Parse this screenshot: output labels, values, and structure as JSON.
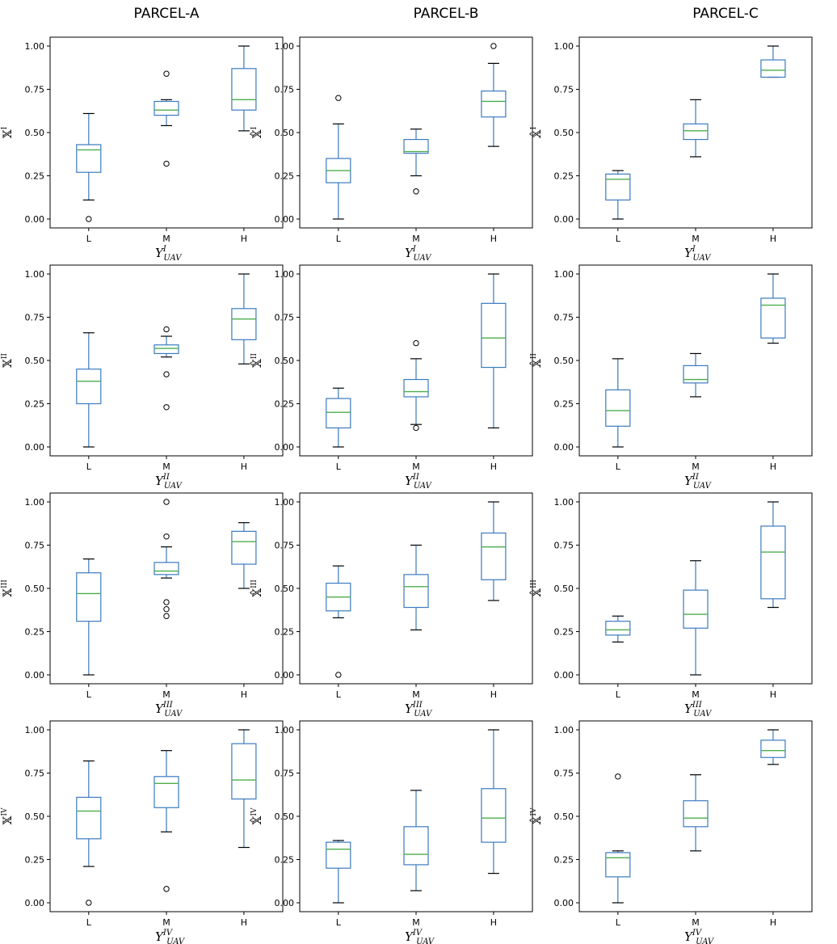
{
  "columns": [
    "PARCEL-A",
    "PARCEL-B",
    "PARCEL-C"
  ],
  "chart_data": [
    {
      "type": "box",
      "parcel": "PARCEL-A",
      "ylabel": "𝕏",
      "ylabel_hat": false,
      "ylabel_sup": "I",
      "xlabel": "Y",
      "xlabel_sup": "I",
      "xlabel_sub": "UAV",
      "categories": [
        "L",
        "M",
        "H"
      ],
      "ylim": [
        0,
        1
      ],
      "yticks": [
        "0.00",
        "0.25",
        "0.50",
        "0.75",
        "1.00"
      ],
      "boxes": [
        {
          "whislo": 0.11,
          "q1": 0.27,
          "med": 0.4,
          "q3": 0.43,
          "whishi": 0.61,
          "fliers": [
            0.0
          ]
        },
        {
          "whislo": 0.54,
          "q1": 0.6,
          "med": 0.63,
          "q3": 0.68,
          "whishi": 0.69,
          "fliers": [
            0.84,
            0.32
          ]
        },
        {
          "whislo": 0.51,
          "q1": 0.63,
          "med": 0.69,
          "q3": 0.87,
          "whishi": 1.0,
          "fliers": []
        }
      ]
    },
    {
      "type": "box",
      "parcel": "PARCEL-B",
      "ylabel": "𝕏",
      "ylabel_hat": true,
      "ylabel_sup": "I",
      "xlabel": "Y",
      "xlabel_sup": "I",
      "xlabel_sub": "UAV",
      "categories": [
        "L",
        "M",
        "H"
      ],
      "ylim": [
        0,
        1
      ],
      "yticks": [
        "0.00",
        "0.25",
        "0.50",
        "0.75",
        "1.00"
      ],
      "boxes": [
        {
          "whislo": 0.0,
          "q1": 0.21,
          "med": 0.28,
          "q3": 0.35,
          "whishi": 0.55,
          "fliers": [
            0.7
          ]
        },
        {
          "whislo": 0.25,
          "q1": 0.38,
          "med": 0.39,
          "q3": 0.46,
          "whishi": 0.52,
          "fliers": [
            0.16
          ]
        },
        {
          "whislo": 0.42,
          "q1": 0.59,
          "med": 0.68,
          "q3": 0.74,
          "whishi": 0.9,
          "fliers": [
            1.0
          ]
        }
      ]
    },
    {
      "type": "box",
      "parcel": "PARCEL-C",
      "ylabel": "𝕏",
      "ylabel_hat": true,
      "ylabel_sup": "I",
      "xlabel": "Y",
      "xlabel_sup": "I",
      "xlabel_sub": "UAV",
      "categories": [
        "L",
        "M",
        "H"
      ],
      "ylim": [
        0,
        1
      ],
      "yticks": [
        "0.00",
        "0.25",
        "0.50",
        "0.75",
        "1.00"
      ],
      "boxes": [
        {
          "whislo": 0.0,
          "q1": 0.11,
          "med": 0.23,
          "q3": 0.26,
          "whishi": 0.28,
          "fliers": []
        },
        {
          "whislo": 0.36,
          "q1": 0.46,
          "med": 0.51,
          "q3": 0.55,
          "whishi": 0.69,
          "fliers": []
        },
        {
          "whislo": 0.82,
          "q1": 0.82,
          "med": 0.86,
          "q3": 0.92,
          "whishi": 1.0,
          "fliers": []
        }
      ]
    },
    {
      "type": "box",
      "parcel": "PARCEL-A",
      "ylabel": "𝕏",
      "ylabel_hat": false,
      "ylabel_sup": "II",
      "xlabel": "Y",
      "xlabel_sup": "II",
      "xlabel_sub": "UAV",
      "categories": [
        "L",
        "M",
        "H"
      ],
      "ylim": [
        0,
        1
      ],
      "yticks": [
        "0.00",
        "0.25",
        "0.50",
        "0.75",
        "1.00"
      ],
      "boxes": [
        {
          "whislo": 0.0,
          "q1": 0.25,
          "med": 0.38,
          "q3": 0.45,
          "whishi": 0.66,
          "fliers": []
        },
        {
          "whislo": 0.52,
          "q1": 0.54,
          "med": 0.57,
          "q3": 0.59,
          "whishi": 0.64,
          "fliers": [
            0.68,
            0.42,
            0.23
          ]
        },
        {
          "whislo": 0.48,
          "q1": 0.62,
          "med": 0.74,
          "q3": 0.8,
          "whishi": 1.0,
          "fliers": []
        }
      ]
    },
    {
      "type": "box",
      "parcel": "PARCEL-B",
      "ylabel": "𝕏",
      "ylabel_hat": true,
      "ylabel_sup": "II",
      "xlabel": "Y",
      "xlabel_sup": "II",
      "xlabel_sub": "UAV",
      "categories": [
        "L",
        "M",
        "H"
      ],
      "ylim": [
        0,
        1
      ],
      "yticks": [
        "0.00",
        "0.25",
        "0.50",
        "0.75",
        "1.00"
      ],
      "boxes": [
        {
          "whislo": 0.0,
          "q1": 0.11,
          "med": 0.2,
          "q3": 0.28,
          "whishi": 0.34,
          "fliers": []
        },
        {
          "whislo": 0.13,
          "q1": 0.29,
          "med": 0.32,
          "q3": 0.39,
          "whishi": 0.51,
          "fliers": [
            0.6,
            0.11
          ]
        },
        {
          "whislo": 0.11,
          "q1": 0.46,
          "med": 0.63,
          "q3": 0.83,
          "whishi": 1.0,
          "fliers": []
        }
      ]
    },
    {
      "type": "box",
      "parcel": "PARCEL-C",
      "ylabel": "𝕏",
      "ylabel_hat": true,
      "ylabel_sup": "II",
      "xlabel": "Y",
      "xlabel_sup": "II",
      "xlabel_sub": "UAV",
      "categories": [
        "L",
        "M",
        "H"
      ],
      "ylim": [
        0,
        1
      ],
      "yticks": [
        "0.00",
        "0.25",
        "0.50",
        "0.75",
        "1.00"
      ],
      "boxes": [
        {
          "whislo": 0.0,
          "q1": 0.12,
          "med": 0.21,
          "q3": 0.33,
          "whishi": 0.51,
          "fliers": []
        },
        {
          "whislo": 0.29,
          "q1": 0.37,
          "med": 0.39,
          "q3": 0.47,
          "whishi": 0.54,
          "fliers": []
        },
        {
          "whislo": 0.6,
          "q1": 0.63,
          "med": 0.82,
          "q3": 0.86,
          "whishi": 1.0,
          "fliers": []
        }
      ]
    },
    {
      "type": "box",
      "parcel": "PARCEL-A",
      "ylabel": "𝕏",
      "ylabel_hat": false,
      "ylabel_sup": "III",
      "xlabel": "Y",
      "xlabel_sup": "III",
      "xlabel_sub": "UAV",
      "categories": [
        "L",
        "M",
        "H"
      ],
      "ylim": [
        0,
        1
      ],
      "yticks": [
        "0.00",
        "0.25",
        "0.50",
        "0.75",
        "1.00"
      ],
      "boxes": [
        {
          "whislo": 0.0,
          "q1": 0.31,
          "med": 0.47,
          "q3": 0.59,
          "whishi": 0.67,
          "fliers": []
        },
        {
          "whislo": 0.56,
          "q1": 0.58,
          "med": 0.6,
          "q3": 0.65,
          "whishi": 0.74,
          "fliers": [
            1.0,
            0.8,
            0.42,
            0.38,
            0.34
          ]
        },
        {
          "whislo": 0.5,
          "q1": 0.64,
          "med": 0.77,
          "q3": 0.83,
          "whishi": 0.88,
          "fliers": []
        }
      ]
    },
    {
      "type": "box",
      "parcel": "PARCEL-B",
      "ylabel": "𝕏",
      "ylabel_hat": true,
      "ylabel_sup": "III",
      "xlabel": "Y",
      "xlabel_sup": "III",
      "xlabel_sub": "UAV",
      "categories": [
        "L",
        "M",
        "H"
      ],
      "ylim": [
        0,
        1
      ],
      "yticks": [
        "0.00",
        "0.25",
        "0.50",
        "0.75",
        "1.00"
      ],
      "boxes": [
        {
          "whislo": 0.33,
          "q1": 0.37,
          "med": 0.45,
          "q3": 0.53,
          "whishi": 0.63,
          "fliers": [
            0.0
          ]
        },
        {
          "whislo": 0.26,
          "q1": 0.39,
          "med": 0.51,
          "q3": 0.58,
          "whishi": 0.75,
          "fliers": []
        },
        {
          "whislo": 0.43,
          "q1": 0.55,
          "med": 0.74,
          "q3": 0.82,
          "whishi": 1.0,
          "fliers": []
        }
      ]
    },
    {
      "type": "box",
      "parcel": "PARCEL-C",
      "ylabel": "𝕏",
      "ylabel_hat": true,
      "ylabel_sup": "III",
      "xlabel": "Y",
      "xlabel_sup": "III",
      "xlabel_sub": "UAV",
      "categories": [
        "L",
        "M",
        "H"
      ],
      "ylim": [
        0,
        1
      ],
      "yticks": [
        "0.00",
        "0.25",
        "0.50",
        "0.75",
        "1.00"
      ],
      "boxes": [
        {
          "whislo": 0.19,
          "q1": 0.23,
          "med": 0.26,
          "q3": 0.31,
          "whishi": 0.34,
          "fliers": []
        },
        {
          "whislo": 0.0,
          "q1": 0.27,
          "med": 0.35,
          "q3": 0.49,
          "whishi": 0.66,
          "fliers": []
        },
        {
          "whislo": 0.39,
          "q1": 0.44,
          "med": 0.71,
          "q3": 0.86,
          "whishi": 1.0,
          "fliers": []
        }
      ]
    },
    {
      "type": "box",
      "parcel": "PARCEL-A",
      "ylabel": "𝕏",
      "ylabel_hat": false,
      "ylabel_sup": "IV",
      "xlabel": "Y",
      "xlabel_sup": "IV",
      "xlabel_sub": "UAV",
      "categories": [
        "L",
        "M",
        "H"
      ],
      "ylim": [
        0,
        1
      ],
      "yticks": [
        "0.00",
        "0.25",
        "0.50",
        "0.75",
        "1.00"
      ],
      "boxes": [
        {
          "whislo": 0.21,
          "q1": 0.37,
          "med": 0.53,
          "q3": 0.61,
          "whishi": 0.82,
          "fliers": [
            0.0
          ]
        },
        {
          "whislo": 0.41,
          "q1": 0.55,
          "med": 0.69,
          "q3": 0.73,
          "whishi": 0.88,
          "fliers": [
            0.08
          ]
        },
        {
          "whislo": 0.32,
          "q1": 0.6,
          "med": 0.71,
          "q3": 0.92,
          "whishi": 1.0,
          "fliers": []
        }
      ]
    },
    {
      "type": "box",
      "parcel": "PARCEL-B",
      "ylabel": "𝕏",
      "ylabel_hat": true,
      "ylabel_sup": "IV",
      "xlabel": "Y",
      "xlabel_sup": "IV",
      "xlabel_sub": "UAV",
      "categories": [
        "L",
        "M",
        "H"
      ],
      "ylim": [
        0,
        1
      ],
      "yticks": [
        "0.00",
        "0.25",
        "0.50",
        "0.75",
        "1.00"
      ],
      "boxes": [
        {
          "whislo": 0.0,
          "q1": 0.2,
          "med": 0.31,
          "q3": 0.35,
          "whishi": 0.36,
          "fliers": []
        },
        {
          "whislo": 0.07,
          "q1": 0.22,
          "med": 0.28,
          "q3": 0.44,
          "whishi": 0.65,
          "fliers": []
        },
        {
          "whislo": 0.17,
          "q1": 0.35,
          "med": 0.49,
          "q3": 0.66,
          "whishi": 1.0,
          "fliers": []
        }
      ]
    },
    {
      "type": "box",
      "parcel": "PARCEL-C",
      "ylabel": "𝕏",
      "ylabel_hat": true,
      "ylabel_sup": "IV",
      "xlabel": "Y",
      "xlabel_sup": "IV",
      "xlabel_sub": "UAV",
      "categories": [
        "L",
        "M",
        "H"
      ],
      "ylim": [
        0,
        1
      ],
      "yticks": [
        "0.00",
        "0.25",
        "0.50",
        "0.75",
        "1.00"
      ],
      "boxes": [
        {
          "whislo": 0.0,
          "q1": 0.15,
          "med": 0.26,
          "q3": 0.29,
          "whishi": 0.3,
          "fliers": [
            0.73
          ]
        },
        {
          "whislo": 0.3,
          "q1": 0.44,
          "med": 0.49,
          "q3": 0.59,
          "whishi": 0.74,
          "fliers": []
        },
        {
          "whislo": 0.8,
          "q1": 0.84,
          "med": 0.88,
          "q3": 0.94,
          "whishi": 1.0,
          "fliers": []
        }
      ]
    }
  ],
  "style": {
    "box_color": "#3b7bbf",
    "median_color": "#4cae4c",
    "axis_color": "#000000",
    "flier_color": "#000000"
  }
}
